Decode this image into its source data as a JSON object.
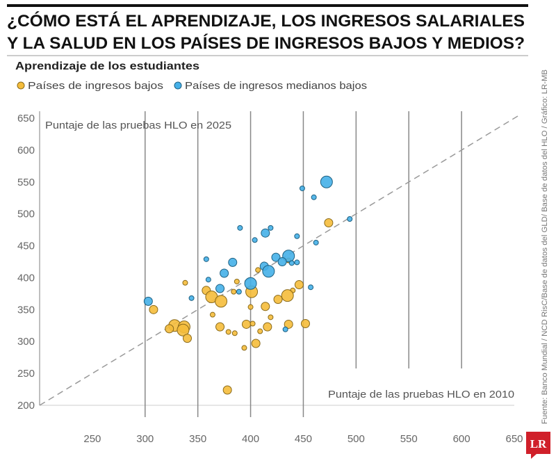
{
  "title_lines": [
    "¿CÓMO ESTÁ EL APRENDIZAJE, LOS INGRESOS SALARIALES",
    "Y LA SALUD EN LOS PAÍSES DE INGRESOS BAJOS Y MEDIOS?"
  ],
  "source": "Fuente: Banco Mundial / NCD RisC/Base de datos del GLD/ Base de datos del HLO / Gráfico: LR-MB",
  "logo": "LR",
  "colors": {
    "low": "#f5bd3b",
    "lower_middle": "#45b0e8",
    "logo": "#d0202a"
  },
  "chart_data": {
    "type": "scatter",
    "title": "Aprendizaje de los estudiantes",
    "xlabel": "Puntaje de las pruebas HLO en 2010",
    "ylabel": "Puntaje de las pruebas HLO en 2025",
    "xlim": [
      200,
      650
    ],
    "ylim": [
      200,
      650
    ],
    "x_ticks": [
      "250",
      "300",
      "350",
      "400",
      "450",
      "500",
      "550",
      "600",
      "650"
    ],
    "y_ticks": [
      "650",
      "600",
      "550",
      "500",
      "450",
      "400",
      "350",
      "300",
      "250",
      "200"
    ],
    "grid": "vertical",
    "reference_line": "y = x (dashed)",
    "legend_position": "top-left",
    "series": [
      {
        "name": "Países de ingresos bajos",
        "color": "#f5bd3b",
        "points": [
          [
            474,
            486,
            2
          ],
          [
            436,
            427,
            1
          ],
          [
            407,
            412,
            1
          ],
          [
            338,
            392,
            1
          ],
          [
            387,
            394,
            1
          ],
          [
            446,
            389,
            2
          ],
          [
            440,
            380,
            1
          ],
          [
            435,
            372,
            3
          ],
          [
            358,
            380,
            2
          ],
          [
            363,
            370,
            3
          ],
          [
            372,
            363,
            3
          ],
          [
            384,
            378,
            1
          ],
          [
            401,
            378,
            3
          ],
          [
            426,
            366,
            2
          ],
          [
            414,
            355,
            2
          ],
          [
            400,
            354,
            1
          ],
          [
            308,
            350,
            2
          ],
          [
            364,
            342,
            1
          ],
          [
            419,
            338,
            1
          ],
          [
            328,
            325,
            3
          ],
          [
            323,
            320,
            2
          ],
          [
            337,
            323,
            3
          ],
          [
            336,
            318,
            3
          ],
          [
            340,
            305,
            2
          ],
          [
            371,
            323,
            2
          ],
          [
            396,
            327,
            2
          ],
          [
            402,
            328,
            1
          ],
          [
            379,
            315,
            1
          ],
          [
            385,
            313,
            1
          ],
          [
            416,
            323,
            2
          ],
          [
            409,
            316,
            1
          ],
          [
            436,
            327,
            2
          ],
          [
            452,
            328,
            2
          ],
          [
            405,
            297,
            2
          ],
          [
            394,
            290,
            1
          ],
          [
            378,
            224,
            2
          ]
        ]
      },
      {
        "name": "Países de ingresos medianos bajos",
        "color": "#45b0e8",
        "points": [
          [
            472,
            550,
            3
          ],
          [
            449,
            540,
            1
          ],
          [
            460,
            526,
            1
          ],
          [
            494,
            492,
            1
          ],
          [
            390,
            478,
            1
          ],
          [
            414,
            470,
            2
          ],
          [
            419,
            478,
            1
          ],
          [
            404,
            459,
            1
          ],
          [
            444,
            465,
            1
          ],
          [
            462,
            455,
            1
          ],
          [
            358,
            429,
            1
          ],
          [
            383,
            424,
            2
          ],
          [
            424,
            432,
            2
          ],
          [
            436,
            434,
            3
          ],
          [
            430,
            425,
            2
          ],
          [
            439,
            423,
            1
          ],
          [
            444,
            424,
            1
          ],
          [
            413,
            418,
            2
          ],
          [
            417,
            410,
            3
          ],
          [
            375,
            407,
            2
          ],
          [
            360,
            397,
            1
          ],
          [
            400,
            391,
            3
          ],
          [
            371,
            383,
            2
          ],
          [
            389,
            378,
            1
          ],
          [
            457,
            385,
            1
          ],
          [
            303,
            363,
            2
          ],
          [
            344,
            368,
            1
          ],
          [
            433,
            319,
            1
          ]
        ]
      }
    ]
  }
}
